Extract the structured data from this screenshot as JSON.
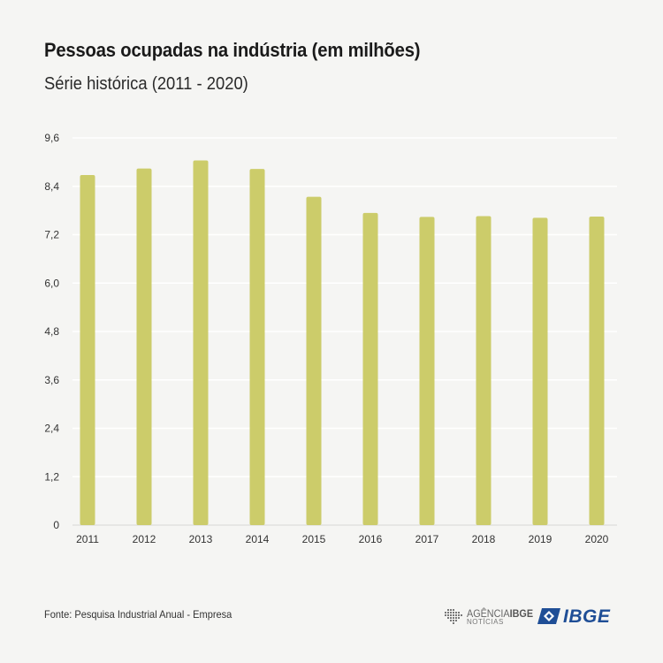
{
  "header": {
    "title": "Pessoas ocupadas na indústria (em milhões)",
    "subtitle": "Série histórica (2011 - 2020)"
  },
  "footer": {
    "source": "Fonte: Pesquisa Industrial Anual - Empresa",
    "agencia_line1": "AGÊNCIA",
    "agencia_line1_bold": "IBGE",
    "agencia_line2": "NOTÍCIAS",
    "ibge_logo": "IBGE",
    "brand_color": "#1f4e96"
  },
  "chart_data": {
    "type": "bar",
    "title": "Pessoas ocupadas na indústria (em milhões)",
    "subtitle": "Série histórica (2011 - 2020)",
    "categories": [
      "2011",
      "2012",
      "2013",
      "2014",
      "2015",
      "2016",
      "2017",
      "2018",
      "2019",
      "2020"
    ],
    "values": [
      8.68,
      8.84,
      9.04,
      8.83,
      8.14,
      7.74,
      7.64,
      7.66,
      7.62,
      7.65
    ],
    "xlabel": "",
    "ylabel": "",
    "ylim": [
      0,
      9.6
    ],
    "yticks": [
      "0",
      "1,2",
      "2,4",
      "3,6",
      "4,8",
      "6,0",
      "7,2",
      "8,4",
      "9,6"
    ],
    "grid": true,
    "bar_color": "#cccc6a"
  }
}
